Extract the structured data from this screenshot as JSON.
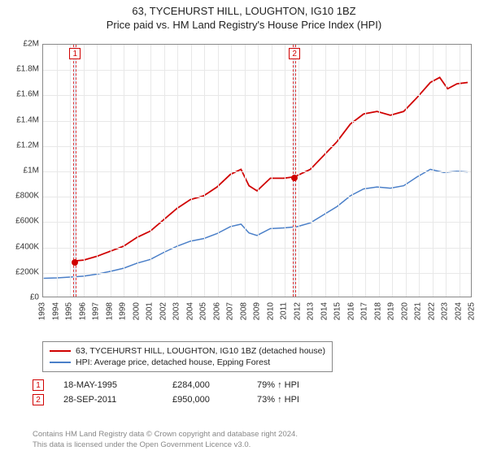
{
  "title_line1": "63, TYCEHURST HILL, LOUGHTON, IG10 1BZ",
  "title_line2": "Price paid vs. HM Land Registry's House Price Index (HPI)",
  "chart": {
    "type": "line",
    "background_color": "#ffffff",
    "grid_color": "#e8e8e8",
    "axis_color": "#888888",
    "label_fontsize": 10,
    "x": {
      "min": 1993,
      "max": 2025,
      "ticks": [
        1993,
        1994,
        1995,
        1996,
        1997,
        1998,
        1999,
        2000,
        2001,
        2002,
        2003,
        2004,
        2005,
        2006,
        2007,
        2008,
        2009,
        2010,
        2011,
        2012,
        2013,
        2014,
        2015,
        2016,
        2017,
        2018,
        2019,
        2020,
        2021,
        2022,
        2023,
        2024,
        2025
      ]
    },
    "y": {
      "min": 0,
      "max": 2000000,
      "ticks": [
        0,
        200000,
        400000,
        600000,
        800000,
        1000000,
        1200000,
        1400000,
        1600000,
        1800000,
        2000000
      ],
      "tick_labels": [
        "£0",
        "£200K",
        "£400K",
        "£600K",
        "£800K",
        "£1M",
        "£1.2M",
        "£1.4M",
        "£1.6M",
        "£1.8M",
        "£2M"
      ]
    },
    "sale_bands": [
      {
        "num": "1",
        "year": 1995.38,
        "width_years": 0.12
      },
      {
        "num": "2",
        "year": 2011.74,
        "width_years": 0.12
      }
    ],
    "sale_points": [
      {
        "year": 1995.38,
        "value": 284000
      },
      {
        "year": 2011.74,
        "value": 950000
      }
    ],
    "series": [
      {
        "name": "price_paid",
        "color": "#d00000",
        "width": 1.8,
        "points": [
          [
            1995.38,
            284000
          ],
          [
            1996,
            290000
          ],
          [
            1997,
            320000
          ],
          [
            1998,
            360000
          ],
          [
            1999,
            400000
          ],
          [
            2000,
            470000
          ],
          [
            2001,
            520000
          ],
          [
            2002,
            610000
          ],
          [
            2003,
            700000
          ],
          [
            2004,
            770000
          ],
          [
            2005,
            800000
          ],
          [
            2006,
            870000
          ],
          [
            2007,
            970000
          ],
          [
            2007.8,
            1010000
          ],
          [
            2008.4,
            880000
          ],
          [
            2009,
            840000
          ],
          [
            2010,
            940000
          ],
          [
            2011,
            940000
          ],
          [
            2011.74,
            950000
          ],
          [
            2012,
            960000
          ],
          [
            2013,
            1010000
          ],
          [
            2014,
            1120000
          ],
          [
            2015,
            1230000
          ],
          [
            2016,
            1370000
          ],
          [
            2017,
            1450000
          ],
          [
            2018,
            1470000
          ],
          [
            2019,
            1440000
          ],
          [
            2020,
            1470000
          ],
          [
            2021,
            1580000
          ],
          [
            2022,
            1700000
          ],
          [
            2022.7,
            1740000
          ],
          [
            2023.3,
            1650000
          ],
          [
            2024,
            1690000
          ],
          [
            2024.8,
            1700000
          ]
        ]
      },
      {
        "name": "hpi",
        "color": "#4a7fc8",
        "width": 1.5,
        "points": [
          [
            1993,
            145000
          ],
          [
            1994,
            148000
          ],
          [
            1995,
            155000
          ],
          [
            1996,
            162000
          ],
          [
            1997,
            178000
          ],
          [
            1998,
            200000
          ],
          [
            1999,
            225000
          ],
          [
            2000,
            265000
          ],
          [
            2001,
            295000
          ],
          [
            2002,
            350000
          ],
          [
            2003,
            400000
          ],
          [
            2004,
            440000
          ],
          [
            2005,
            460000
          ],
          [
            2006,
            500000
          ],
          [
            2007,
            555000
          ],
          [
            2007.8,
            575000
          ],
          [
            2008.4,
            505000
          ],
          [
            2009,
            485000
          ],
          [
            2010,
            540000
          ],
          [
            2011,
            545000
          ],
          [
            2012,
            555000
          ],
          [
            2013,
            585000
          ],
          [
            2014,
            650000
          ],
          [
            2015,
            715000
          ],
          [
            2016,
            800000
          ],
          [
            2017,
            855000
          ],
          [
            2018,
            870000
          ],
          [
            2019,
            860000
          ],
          [
            2020,
            880000
          ],
          [
            2021,
            950000
          ],
          [
            2022,
            1010000
          ],
          [
            2023,
            985000
          ],
          [
            2024,
            995000
          ],
          [
            2024.8,
            990000
          ]
        ]
      }
    ]
  },
  "legend": {
    "items": [
      {
        "color": "#d00000",
        "label": "63, TYCEHURST HILL, LOUGHTON, IG10 1BZ (detached house)"
      },
      {
        "color": "#4a7fc8",
        "label": "HPI: Average price, detached house, Epping Forest"
      }
    ]
  },
  "sales_table": {
    "rows": [
      {
        "num": "1",
        "date": "18-MAY-1995",
        "price": "£284,000",
        "diff": "79% ↑ HPI"
      },
      {
        "num": "2",
        "date": "28-SEP-2011",
        "price": "£950,000",
        "diff": "73% ↑ HPI"
      }
    ]
  },
  "footer": {
    "line1": "Contains HM Land Registry data © Crown copyright and database right 2024.",
    "line2": "This data is licensed under the Open Government Licence v3.0."
  }
}
